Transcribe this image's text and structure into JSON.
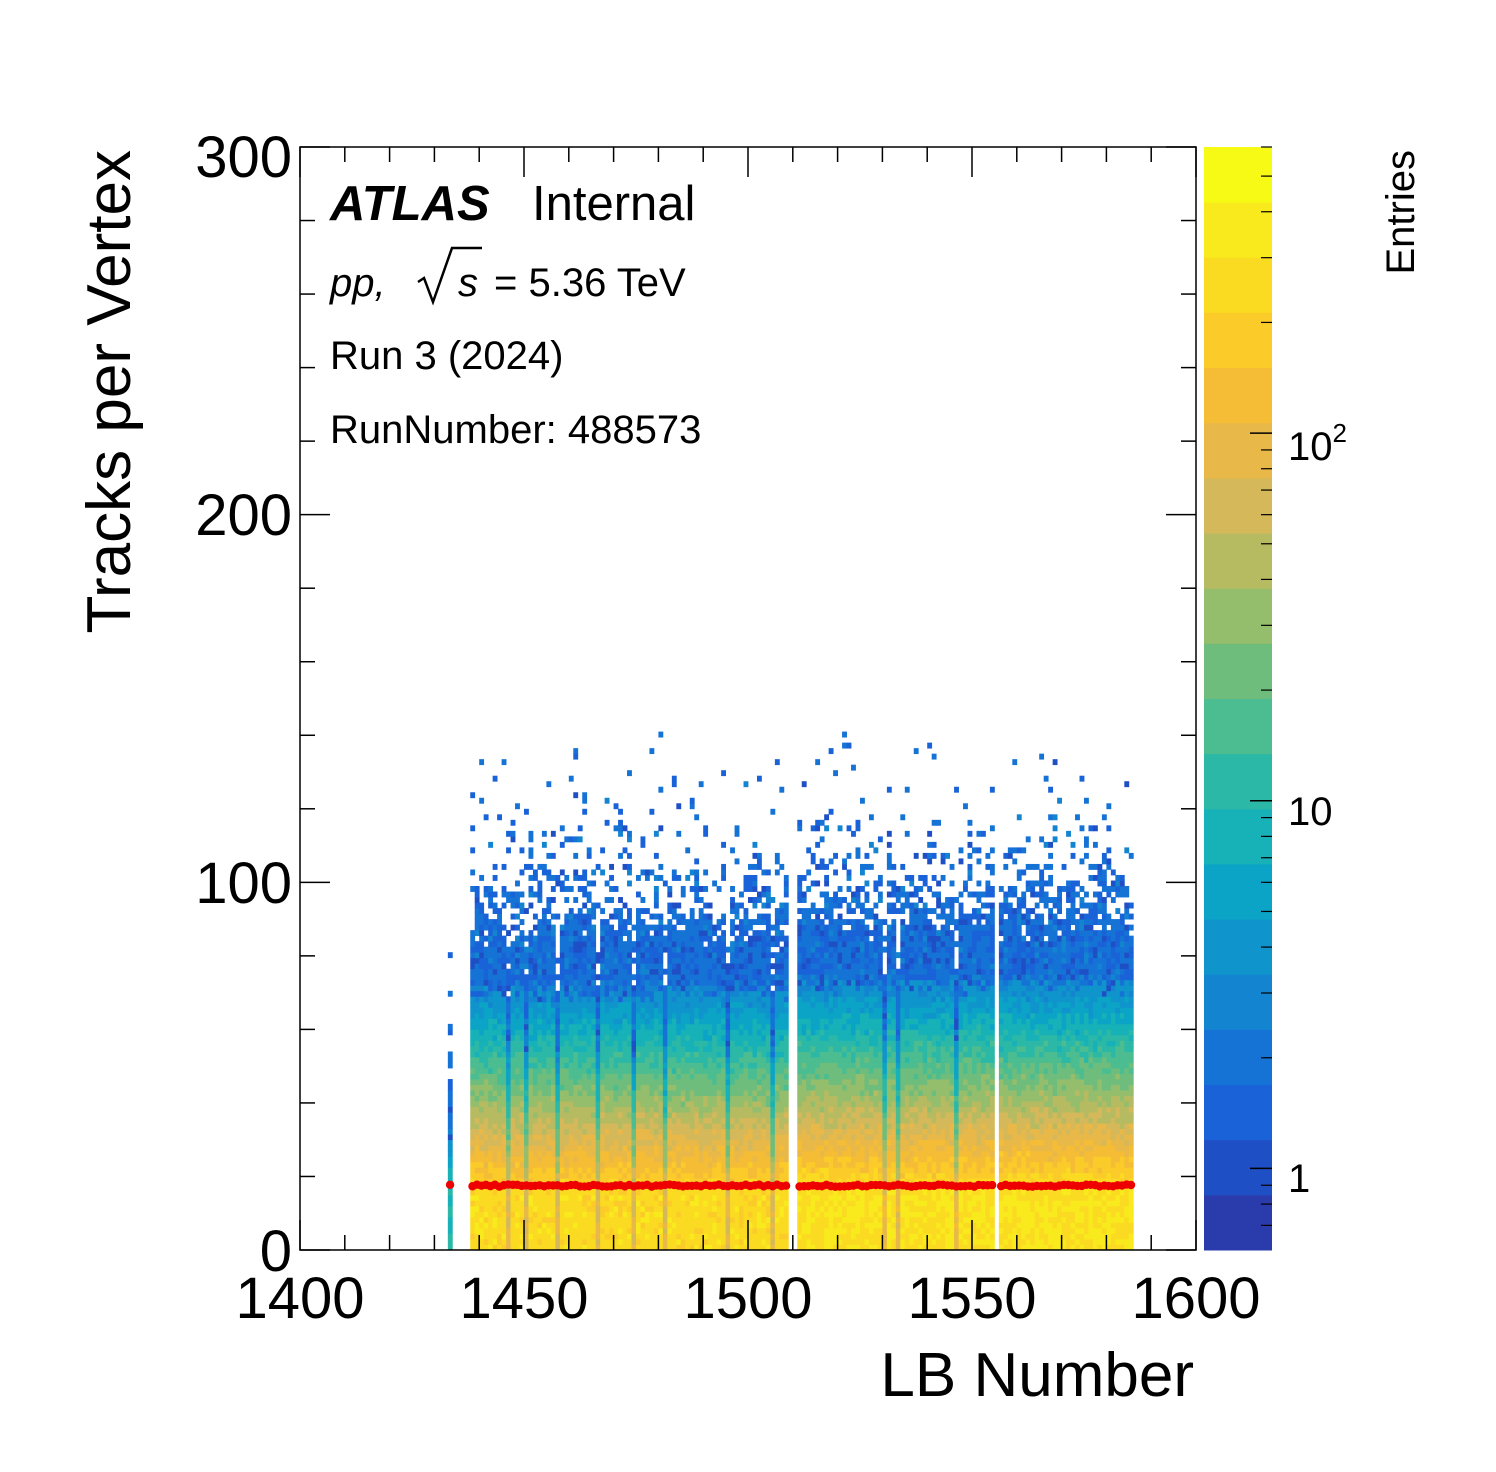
{
  "chart_data": {
    "type": "heatmap",
    "title": "",
    "xlabel": "LB Number",
    "ylabel": "Tracks per Vertex",
    "xlim": [
      1400,
      1600
    ],
    "ylim": [
      0,
      300
    ],
    "x_ticks": [
      "1400",
      "1450",
      "1500",
      "1550",
      "1600"
    ],
    "y_ticks": [
      "0",
      "100",
      "200",
      "300"
    ],
    "colorbar": {
      "label": "Entries",
      "scale": "log",
      "range": [
        0.6,
        600
      ],
      "ticks": [
        {
          "value": 1,
          "label": "1"
        },
        {
          "value": 10,
          "label": "10"
        },
        {
          "value": 100,
          "label": "10",
          "exponent": "2"
        }
      ],
      "colors": [
        "#2a3cac",
        "#1f4fc4",
        "#1962d8",
        "#1673d6",
        "#1384d0",
        "#0f94cc",
        "#0ba4c6",
        "#17b1b8",
        "#2cb8a6",
        "#4bbd90",
        "#6ebd7c",
        "#94bd6c",
        "#b6bb62",
        "#d4b85a",
        "#e8b848",
        "#f5bd36",
        "#fbcb2a",
        "#fbda22",
        "#f8ea1c",
        "#f7fa14"
      ]
    },
    "lb_range": [
      1433,
      1585
    ],
    "lb_gaps": [
      1434,
      1435,
      1436,
      1437,
      1509,
      1510,
      1555
    ],
    "profile_mean_tracks": 17.5,
    "profile_color": "#ee0000",
    "annotations": {
      "atlas_label": "ATLAS",
      "atlas_status": "Internal",
      "energy_prefix": "pp,",
      "energy_sqrt": "s",
      "energy_value": "= 5.36 TeV",
      "run_period": "Run 3 (2024)",
      "run_number": "RunNumber: 488573"
    }
  }
}
